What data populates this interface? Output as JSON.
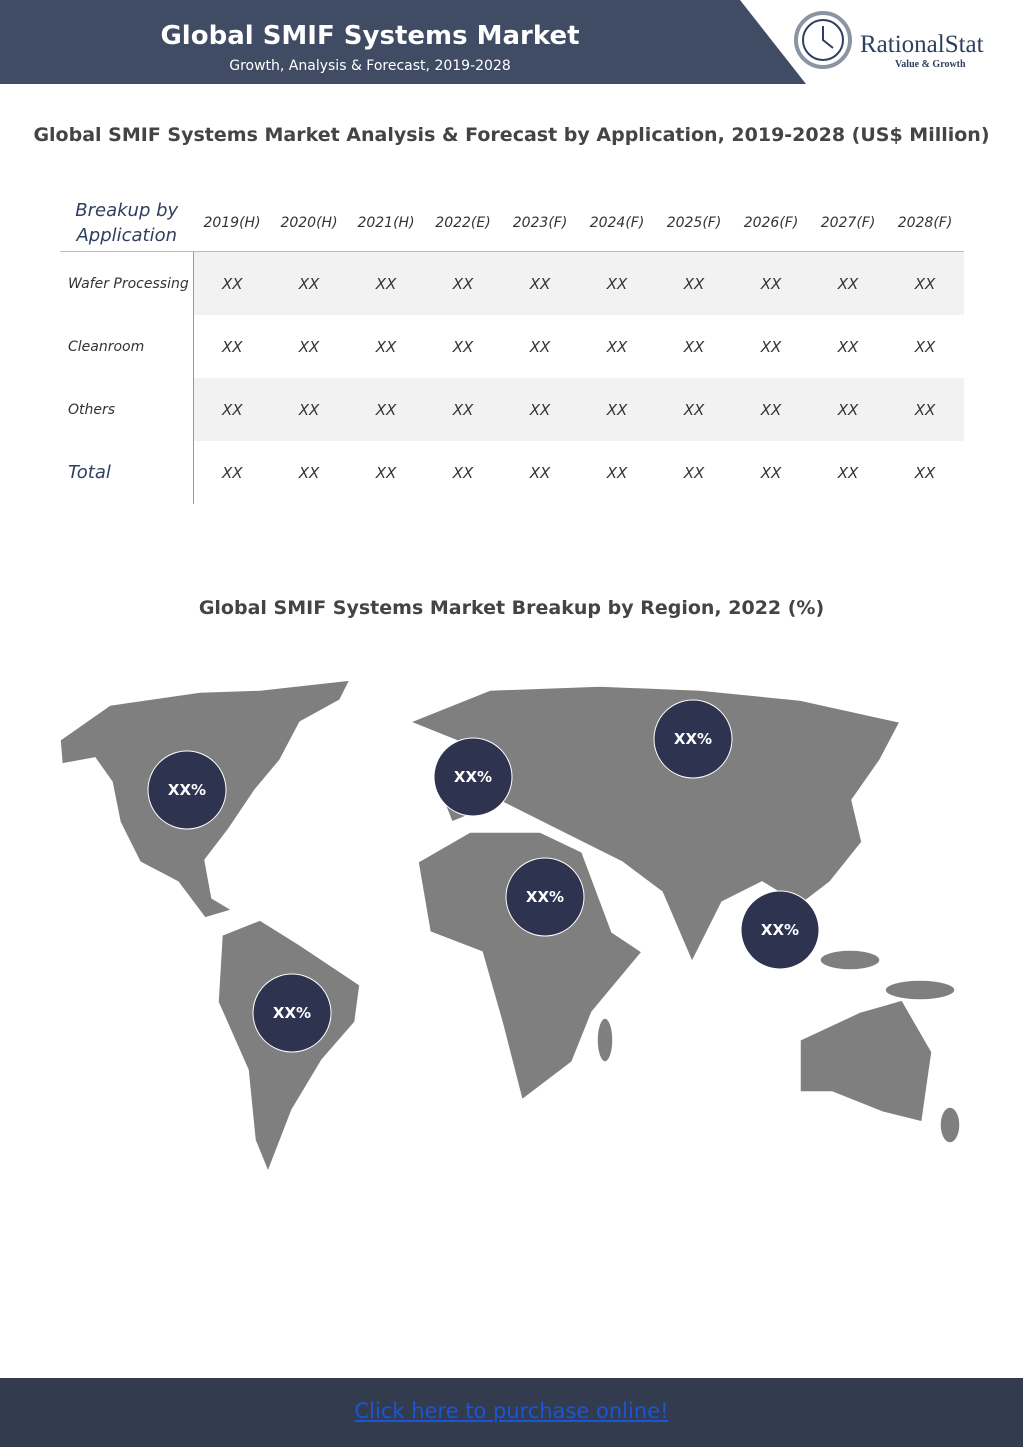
{
  "header": {
    "title": "Global SMIF Systems Market",
    "subtitle": "Growth, Analysis & Forecast, 2019-2028",
    "logo": {
      "name": "RationalStat",
      "tagline": "Value & Growth"
    }
  },
  "table": {
    "title": "Global SMIF Systems Market Analysis & Forecast by Application, 2019-2028 (US$ Million)",
    "columns": [
      "Breakup by Application",
      "2019(H)",
      "2020(H)",
      "2021(H)",
      "2022(E)",
      "2023(F)",
      "2024(F)",
      "2025(F)",
      "2026(F)",
      "2027(F)",
      "2028(F)"
    ],
    "rows": [
      [
        "Wafer Processing",
        "XX",
        "XX",
        "XX",
        "XX",
        "XX",
        "XX",
        "XX",
        "XX",
        "XX",
        "XX"
      ],
      [
        "Cleanroom",
        "XX",
        "XX",
        "XX",
        "XX",
        "XX",
        "XX",
        "XX",
        "XX",
        "XX",
        "XX"
      ],
      [
        "Others",
        "XX",
        "XX",
        "XX",
        "XX",
        "XX",
        "XX",
        "XX",
        "XX",
        "XX",
        "XX"
      ],
      [
        "Total",
        "XX",
        "XX",
        "XX",
        "XX",
        "XX",
        "XX",
        "XX",
        "XX",
        "XX",
        "XX"
      ]
    ]
  },
  "map": {
    "title": "Global SMIF Systems Market Breakup by Region, 2022 (%)",
    "bubbles": [
      "XX%",
      "XX%",
      "XX%",
      "XX%",
      "XX%",
      "XX%"
    ]
  },
  "footer": {
    "link": "Click here to purchase online!"
  }
}
